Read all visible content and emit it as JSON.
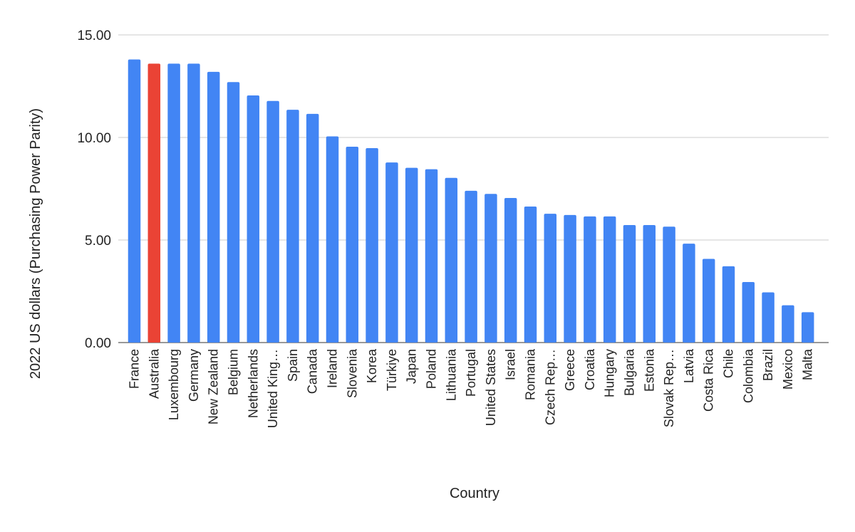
{
  "chart_data": {
    "type": "bar",
    "title": "",
    "xlabel": "Country",
    "ylabel": "2022 US dollars (Purchasing Power Parity)",
    "ylim": [
      0,
      15
    ],
    "yticks": [
      0,
      5,
      10,
      15
    ],
    "ytick_labels": [
      "0.00",
      "5.00",
      "10.00",
      "15.00"
    ],
    "grid": true,
    "legend": "none",
    "colors": {
      "default": "#4285F4",
      "highlight": "#EA4335"
    },
    "highlight_category": "Australia",
    "categories": [
      "France",
      "Australia",
      "Luxembourg",
      "Germany",
      "New Zealand",
      "Belgium",
      "Netherlands",
      "United King…",
      "Spain",
      "Canada",
      "Ireland",
      "Slovenia",
      "Korea",
      "Türkiye",
      "Japan",
      "Poland",
      "Lithuania",
      "Portugal",
      "United States",
      "Israel",
      "Romania",
      "Czech Rep…",
      "Greece",
      "Croatia",
      "Hungary",
      "Bulgaria",
      "Estonia",
      "Slovak Rep…",
      "Latvia",
      "Costa Rica",
      "Chile",
      "Colombia",
      "Brazil",
      "Mexico",
      "Malta"
    ],
    "values": [
      13.8,
      13.6,
      13.6,
      13.6,
      13.2,
      12.7,
      12.05,
      11.78,
      11.35,
      11.15,
      10.05,
      9.55,
      9.48,
      8.78,
      8.52,
      8.45,
      8.03,
      7.4,
      7.25,
      7.05,
      6.63,
      6.28,
      6.22,
      6.15,
      6.15,
      5.73,
      5.73,
      5.65,
      4.82,
      4.08,
      3.72,
      2.95,
      2.45,
      1.82,
      1.48
    ]
  }
}
